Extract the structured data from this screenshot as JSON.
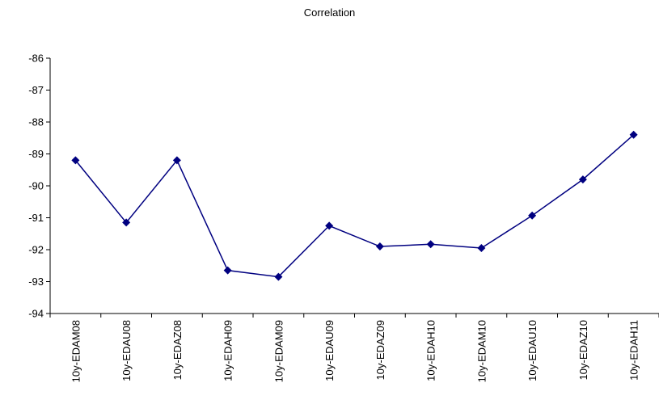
{
  "chart_data": {
    "type": "line",
    "title": "Correlation",
    "xlabel": "",
    "ylabel": "",
    "categories": [
      "10y-EDAM08",
      "10y-EDAU08",
      "10y-EDAZ08",
      "10y-EDAH09",
      "10y-EDAM09",
      "10y-EDAU09",
      "10y-EDAZ09",
      "10y-EDAH10",
      "10y-EDAM10",
      "10y-EDAU10",
      "10y-EDAZ10",
      "10y-EDAH11"
    ],
    "series": [
      {
        "values": [
          -89.2,
          -91.15,
          -89.2,
          -92.65,
          -92.85,
          -91.25,
          -91.9,
          -91.83,
          -91.95,
          -90.93,
          -89.8,
          -88.4
        ],
        "color": "#000080"
      }
    ],
    "ylim": [
      -94,
      -86
    ],
    "yticks": [
      -86,
      -87,
      -88,
      -89,
      -90,
      -91,
      -92,
      -93,
      -94
    ],
    "grid": false,
    "legend": "none",
    "marker": "diamond"
  }
}
